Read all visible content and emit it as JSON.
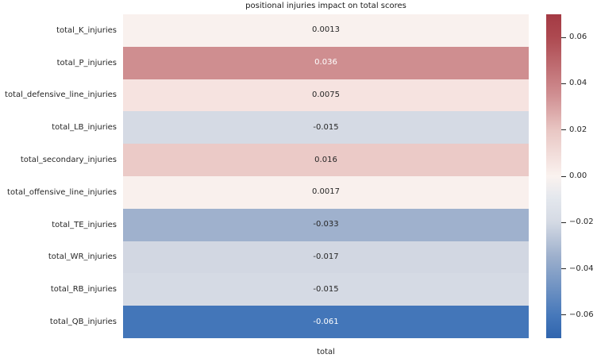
{
  "chart_data": {
    "type": "heatmap",
    "title": "positional injuries impact on total scores",
    "xlabel": "total",
    "x_categories": [
      "total"
    ],
    "rows": [
      {
        "label": "total_K_injuries",
        "value": 0.0013,
        "display": "0.0013",
        "cell_color": "#f9f1ee",
        "text_color": "#262626"
      },
      {
        "label": "total_P_injuries",
        "value": 0.036,
        "display": "0.036",
        "cell_color": "#cf8e90",
        "text_color": "#ffffff"
      },
      {
        "label": "total_defensive_line_injuries",
        "value": 0.0075,
        "display": "0.0075",
        "cell_color": "#f6e3e0",
        "text_color": "#262626"
      },
      {
        "label": "total_LB_injuries",
        "value": -0.015,
        "display": "-0.015",
        "cell_color": "#d5dae4",
        "text_color": "#262626"
      },
      {
        "label": "total_secondary_injuries",
        "value": 0.016,
        "display": "0.016",
        "cell_color": "#ebcac7",
        "text_color": "#262626"
      },
      {
        "label": "total_offensive_line_injuries",
        "value": 0.0017,
        "display": "0.0017",
        "cell_color": "#f9f0ed",
        "text_color": "#262626"
      },
      {
        "label": "total_TE_injuries",
        "value": -0.033,
        "display": "-0.033",
        "cell_color": "#9fb1cd",
        "text_color": "#262626"
      },
      {
        "label": "total_WR_injuries",
        "value": -0.017,
        "display": "-0.017",
        "cell_color": "#d2d7e2",
        "text_color": "#262626"
      },
      {
        "label": "total_RB_injuries",
        "value": -0.015,
        "display": "-0.015",
        "cell_color": "#d5dae4",
        "text_color": "#262626"
      },
      {
        "label": "total_QB_injuries",
        "value": -0.061,
        "display": "-0.061",
        "cell_color": "#4376b9",
        "text_color": "#ffffff"
      }
    ],
    "colorbar": {
      "vmin": -0.07,
      "vmax": 0.07,
      "ticks": [
        {
          "label": "0.06",
          "value": 0.06
        },
        {
          "label": "0.04",
          "value": 0.04
        },
        {
          "label": "0.02",
          "value": 0.02
        },
        {
          "label": "0.00",
          "value": 0.0
        },
        {
          "label": "−0.02",
          "value": -0.02
        },
        {
          "label": "−0.04",
          "value": -0.04
        },
        {
          "label": "−0.06",
          "value": -0.06
        }
      ],
      "gradient": [
        {
          "pos": 0,
          "color": "#a43a44"
        },
        {
          "pos": 7,
          "color": "#ad4950"
        },
        {
          "pos": 25,
          "color": "#d08f92"
        },
        {
          "pos": 36,
          "color": "#e9c7c4"
        },
        {
          "pos": 50,
          "color": "#faf2ef"
        },
        {
          "pos": 57,
          "color": "#e3e7ed"
        },
        {
          "pos": 64,
          "color": "#d5dae4"
        },
        {
          "pos": 75,
          "color": "#9cafcc"
        },
        {
          "pos": 93,
          "color": "#4678ba"
        },
        {
          "pos": 100,
          "color": "#3065ae"
        }
      ]
    }
  }
}
